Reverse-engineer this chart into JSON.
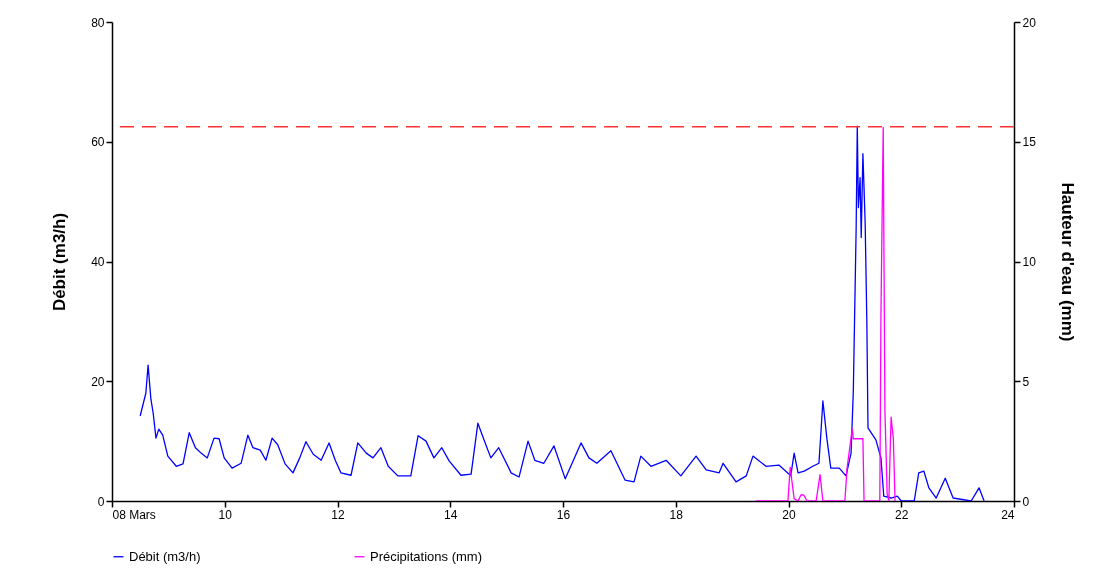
{
  "chart_data": {
    "type": "line",
    "ylabel": "Débit  (m3/h)",
    "y2label": "Hauteur d'eau  (mm)",
    "xlim": [
      8,
      24
    ],
    "xticks": [
      {
        "value": 8,
        "label": "08 Mars"
      },
      10,
      12,
      14,
      16,
      18,
      20,
      22,
      24
    ],
    "ylim": [
      0,
      80
    ],
    "yticks": [
      0,
      20,
      40,
      60,
      80
    ],
    "y2lim": [
      0,
      20
    ],
    "y2ticks": [
      0,
      5,
      10,
      15,
      20
    ],
    "legend": "bottom",
    "ref_lines": [
      {
        "axis": "y",
        "value": 62.5,
        "color": "#ff3333",
        "line_style": "dashed"
      }
    ],
    "series": [
      {
        "name": "Débit (m3/h)",
        "color": "#0000ff",
        "x": [
          8.5,
          8.6,
          8.64,
          8.69,
          8.73,
          8.78,
          8.83,
          8.9,
          8.99,
          9.14,
          9.26,
          9.37,
          9.48,
          9.58,
          9.69,
          9.81,
          9.9,
          9.99,
          10.13,
          10.29,
          10.41,
          10.5,
          10.63,
          10.73,
          10.84,
          10.94,
          11.07,
          11.21,
          11.33,
          11.44,
          11.57,
          11.71,
          11.85,
          11.96,
          12.06,
          12.24,
          12.36,
          12.51,
          12.63,
          12.77,
          12.9,
          13.07,
          13.3,
          13.43,
          13.57,
          13.71,
          13.85,
          13.98,
          14.19,
          14.37,
          14.49,
          14.6,
          14.72,
          14.86,
          15.08,
          15.22,
          15.38,
          15.5,
          15.66,
          15.84,
          16.04,
          16.32,
          16.46,
          16.6,
          16.85,
          17.1,
          17.26,
          17.38,
          17.56,
          17.83,
          18.09,
          18.36,
          18.54,
          18.77,
          18.84,
          19.07,
          19.25,
          19.37,
          19.6,
          19.83,
          20.04,
          20.1,
          20.17,
          20.28,
          20.43,
          20.54,
          20.58,
          20.61,
          20.68,
          20.75,
          20.9,
          21.02,
          21.11,
          21.15,
          21.2,
          21.22,
          21.24,
          21.27,
          21.29,
          21.32,
          21.36,
          21.39,
          21.41,
          21.55,
          21.64,
          21.69,
          21.82,
          21.93,
          22,
          22.23,
          22.31,
          22.4,
          22.49,
          22.62,
          22.78,
          22.92,
          23.24,
          23.38,
          23.47
        ],
        "values": [
          14.2,
          18,
          22.7,
          17,
          14.7,
          10.5,
          12,
          11,
          7.5,
          5.8,
          6.2,
          11.4,
          8.9,
          8,
          7.2,
          10.5,
          10.4,
          7.2,
          5.5,
          6.3,
          11,
          8.9,
          8.5,
          6.8,
          10.5,
          9.4,
          6.2,
          4.7,
          7.2,
          9.9,
          7.8,
          6.8,
          9.7,
          6.8,
          4.7,
          4.3,
          9.7,
          8,
          7.2,
          8.9,
          5.8,
          4.2,
          4.2,
          10.9,
          10,
          7.2,
          8.9,
          6.7,
          4.3,
          4.5,
          13,
          10.2,
          7.2,
          8.9,
          4.7,
          4,
          10,
          6.8,
          6.3,
          9.2,
          3.7,
          9.7,
          7.2,
          6.3,
          8.4,
          3.5,
          3.2,
          7.5,
          5.8,
          6.8,
          4.2,
          7.5,
          5.2,
          4.7,
          6.3,
          3.2,
          4.2,
          7.5,
          5.8,
          6,
          4.2,
          8,
          4.7,
          5,
          5.8,
          6.3,
          12.2,
          16.7,
          10.5,
          5.5,
          5.5,
          4.2,
          8,
          18.4,
          45.6,
          62.6,
          49,
          54,
          44,
          58,
          46.4,
          29.7,
          12.2,
          10.2,
          7.2,
          0.8,
          0.5,
          0.8,
          0,
          0,
          4.7,
          5,
          2.2,
          0.5,
          3.8,
          0.5,
          0,
          2.2,
          0
        ]
      },
      {
        "name": "Précipitations (mm)",
        "color": "#ff00ff",
        "axis": "y2",
        "x": [
          19.42,
          19.99,
          20.03,
          20.1,
          20.17,
          20.22,
          20.27,
          20.33,
          20.49,
          20.56,
          20.61,
          21.0,
          21.04,
          21.13,
          21.15,
          21.32,
          21.34,
          21.62,
          21.64,
          21.68,
          21.69,
          21.71,
          21.75,
          21.78,
          21.82,
          21.86,
          21.89
        ],
        "values": [
          0,
          0,
          1.4,
          0.1,
          0,
          0.25,
          0.25,
          0,
          0,
          1.1,
          0,
          0,
          1.4,
          3.0,
          2.6,
          2.6,
          0,
          0,
          7.85,
          15.6,
          11.6,
          3.8,
          0.3,
          0,
          3.5,
          2.6,
          0
        ]
      }
    ]
  }
}
